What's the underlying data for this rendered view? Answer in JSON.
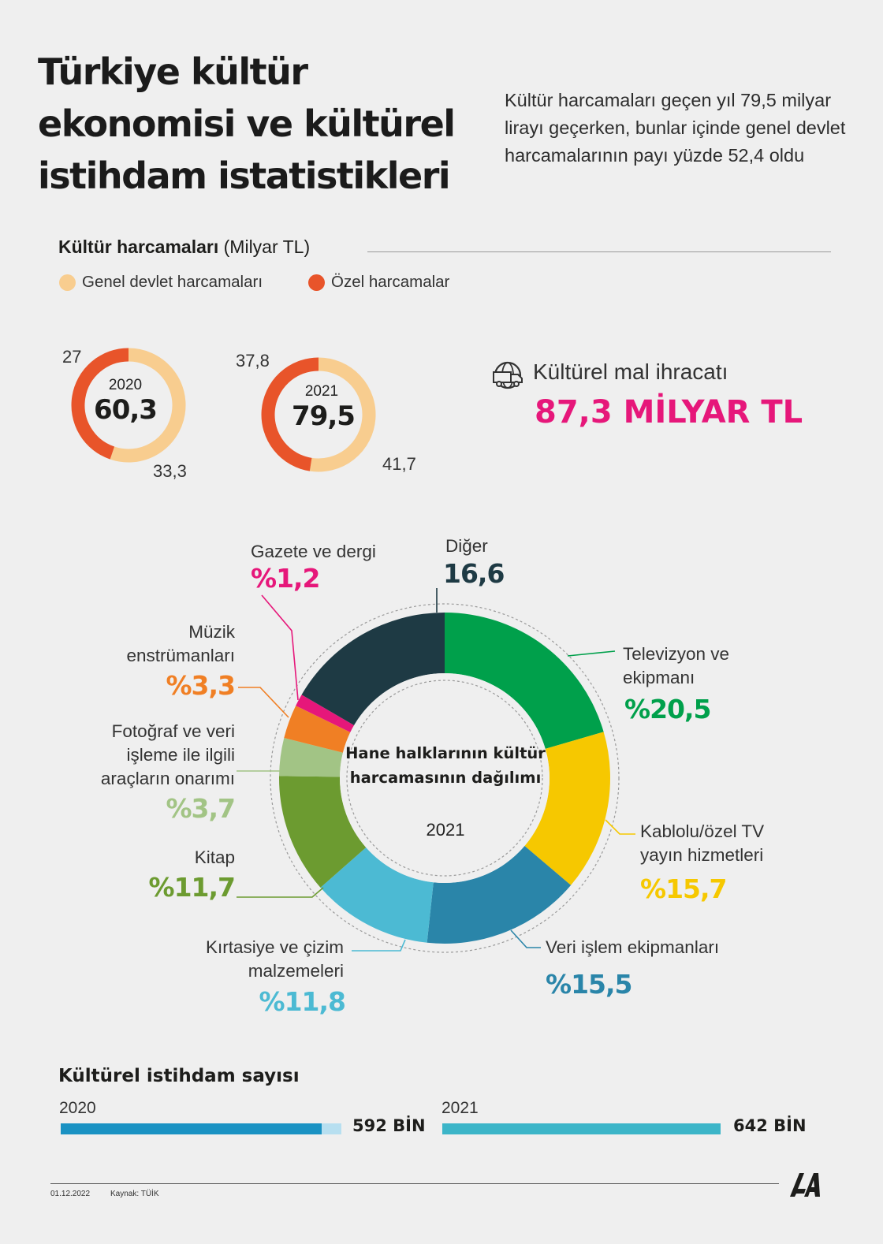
{
  "title": "Türkiye kültür ekonomisi ve kültürel istihdam istatistikleri",
  "subtitle": "Kültür harcamaları geçen yıl 79,5 milyar lirayı geçerken, bunlar içinde genel devlet harcamalarının payı yüzde 52,4 oldu",
  "colors": {
    "background": "#efefef",
    "general_gov": "#f8cd8f",
    "private": "#e8542a",
    "export": "#e6177a"
  },
  "spending": {
    "title_bold": "Kültür harcamaları",
    "title_unit": "(Milyar TL)",
    "legend": [
      {
        "label": "Genel devlet harcamaları",
        "color": "#f8cd8f"
      },
      {
        "label": "Özel harcamalar",
        "color": "#e8542a"
      }
    ]
  },
  "export": {
    "icon": "globe-truck-icon",
    "label": "Kültürel mal ihracatı",
    "value": "87,3 MİLYAR TL"
  },
  "distribution": {
    "title": "Hane halklarının kültür harcamasının dağılımı",
    "year": "2021"
  },
  "employment": {
    "title": "Kültürel istihdam sayısı",
    "items": [
      {
        "year": "2020",
        "value": "592 BİN",
        "number": 592,
        "color": "#1a92c3",
        "track": "#b7dff0"
      },
      {
        "year": "2021",
        "value": "642 BİN",
        "number": 642,
        "color": "#3cb5c8",
        "track": "#b9e4ea"
      }
    ]
  },
  "footer": {
    "date": "01.12.2022",
    "source": "Kaynak: TÜİK",
    "logo_text": "AA"
  },
  "chart_data": [
    {
      "type": "pie",
      "variant": "donut",
      "year": "2020",
      "total": 60.3,
      "total_label": "60,3",
      "slices": [
        {
          "name": "Genel devlet harcamaları",
          "value": 33.3,
          "label": "33,3",
          "color": "#f8cd8f"
        },
        {
          "name": "Özel harcamalar",
          "value": 27,
          "label": "27",
          "color": "#e8542a"
        }
      ]
    },
    {
      "type": "pie",
      "variant": "donut",
      "year": "2021",
      "total": 79.5,
      "total_label": "79,5",
      "slices": [
        {
          "name": "Genel devlet harcamaları",
          "value": 41.7,
          "label": "41,7",
          "color": "#f8cd8f"
        },
        {
          "name": "Özel harcamalar",
          "value": 37.8,
          "label": "37,8",
          "color": "#e8542a"
        }
      ]
    },
    {
      "type": "pie",
      "variant": "donut",
      "title": "Hane halklarının kültür harcamasının dağılımı",
      "year": "2021",
      "slices": [
        {
          "name": "Televizyon ve ekipmanı",
          "value": 20.5,
          "label": "%20,5",
          "color": "#00a04b"
        },
        {
          "name": "Kablolu/özel TV yayın hizmetleri",
          "value": 15.7,
          "label": "%15,7",
          "color": "#f6c800"
        },
        {
          "name": "Veri işlem ekipmanları",
          "value": 15.5,
          "label": "%15,5",
          "color": "#2a85a9"
        },
        {
          "name": "Kırtasiye ve çizim malzemeleri",
          "value": 11.8,
          "label": "%11,8",
          "color": "#4cbad3"
        },
        {
          "name": "Kitap",
          "value": 11.7,
          "label": "%11,7",
          "color": "#6c9b30"
        },
        {
          "name": "Fotoğraf ve veri işleme ile ilgili araçların onarımı",
          "value": 3.7,
          "label": "%3,7",
          "color": "#a2c485"
        },
        {
          "name": "Müzik enstrümanları",
          "value": 3.3,
          "label": "%3,3",
          "color": "#f07f24"
        },
        {
          "name": "Gazete ve dergi",
          "value": 1.2,
          "label": "%1,2",
          "color": "#e6177a"
        },
        {
          "name": "Diğer",
          "value": 16.6,
          "label": "16,6",
          "color": "#1e3a44"
        }
      ]
    }
  ]
}
